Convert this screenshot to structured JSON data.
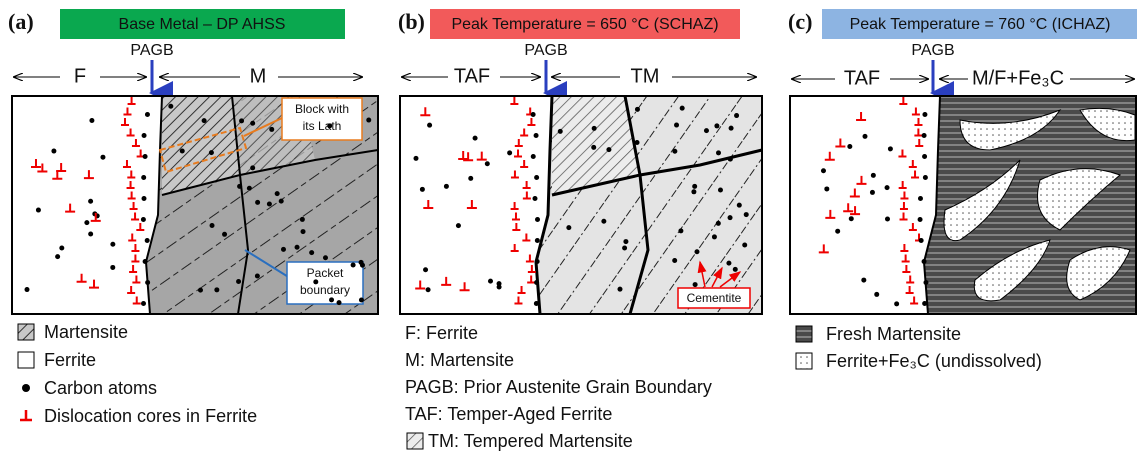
{
  "panels": [
    {
      "label": "(a)",
      "header": "Base Metal – DP AHSS",
      "pagb": "PAGB",
      "left_zone": "F",
      "right_zone": "M",
      "callouts": [
        [
          "Block with",
          "its Lath"
        ],
        [
          "Packet",
          "boundary"
        ]
      ],
      "legend": [
        "Martensite",
        "Ferrite",
        "Carbon atoms",
        "Dislocation cores in Ferrite"
      ]
    },
    {
      "label": "(b)",
      "header": "Peak Temperature = 650 °C (SCHAZ)",
      "pagb": "PAGB",
      "left_zone": "TAF",
      "right_zone": "TM",
      "callouts": [
        [
          "Cementite"
        ]
      ],
      "legend": [
        "F: Ferrite",
        "M: Martensite",
        "PAGB: Prior Austenite Grain Boundary",
        "TAF: Temper-Aged Ferrite",
        "TM: Tempered Martensite"
      ]
    },
    {
      "label": "(c)",
      "header": "Peak Temperature = 760 °C (ICHAZ)",
      "pagb": "PAGB",
      "left_zone": "TAF",
      "right_zone": "M/F+Fe₃C",
      "legend": [
        "Fresh Martensite",
        "Ferrite+Fe₃C (undissolved)"
      ]
    }
  ]
}
